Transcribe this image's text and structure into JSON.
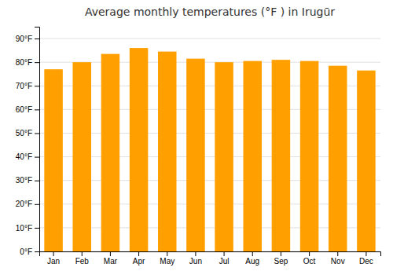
{
  "chart_data": {
    "type": "bar",
    "title": "Average monthly temperatures (°F ) in Irugūr",
    "categories": [
      "Jan",
      "Feb",
      "Mar",
      "Apr",
      "May",
      "Jun",
      "Jul",
      "Aug",
      "Sep",
      "Oct",
      "Nov",
      "Dec"
    ],
    "values": [
      77,
      80,
      83.5,
      86,
      84.5,
      81.5,
      80,
      80.5,
      81,
      80.5,
      78.5,
      76.5
    ],
    "color": "#FFA000",
    "ylim": [
      0,
      95
    ],
    "yticks": [
      {
        "value": 0,
        "label": "0°F"
      },
      {
        "value": 10,
        "label": "10°F"
      },
      {
        "value": 20,
        "label": "20°F"
      },
      {
        "value": 30,
        "label": "30°F"
      },
      {
        "value": 40,
        "label": "40°F"
      },
      {
        "value": 50,
        "label": "50°F"
      },
      {
        "value": 60,
        "label": "60°F"
      },
      {
        "value": 70,
        "label": "70°F"
      },
      {
        "value": 80,
        "label": "80°F"
      },
      {
        "value": 90,
        "label": "90°F"
      }
    ],
    "grid": true
  }
}
